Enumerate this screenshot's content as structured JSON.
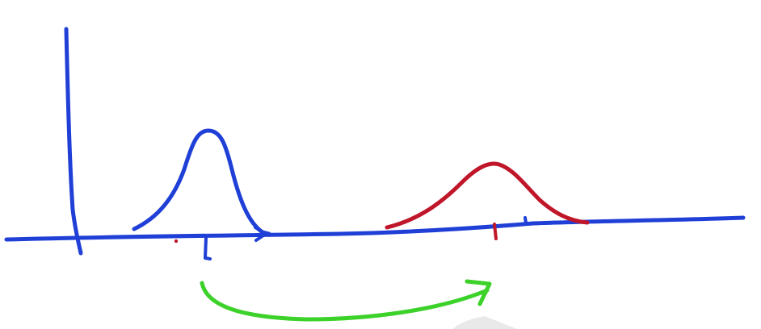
{
  "sketch": {
    "colors": {
      "axis": "#1f3fd6",
      "original_distribution": "#1f3fd6",
      "shifted_distribution": "#c0162a",
      "shift_arrow": "#3cd22a",
      "stray_dot": "#c0162a"
    },
    "elements": [
      "y-axis",
      "x-axis",
      "original-distribution-curve",
      "shifted-distribution-curve",
      "original-mean-tick",
      "shifted-mean-tick",
      "shift-arrow"
    ]
  }
}
